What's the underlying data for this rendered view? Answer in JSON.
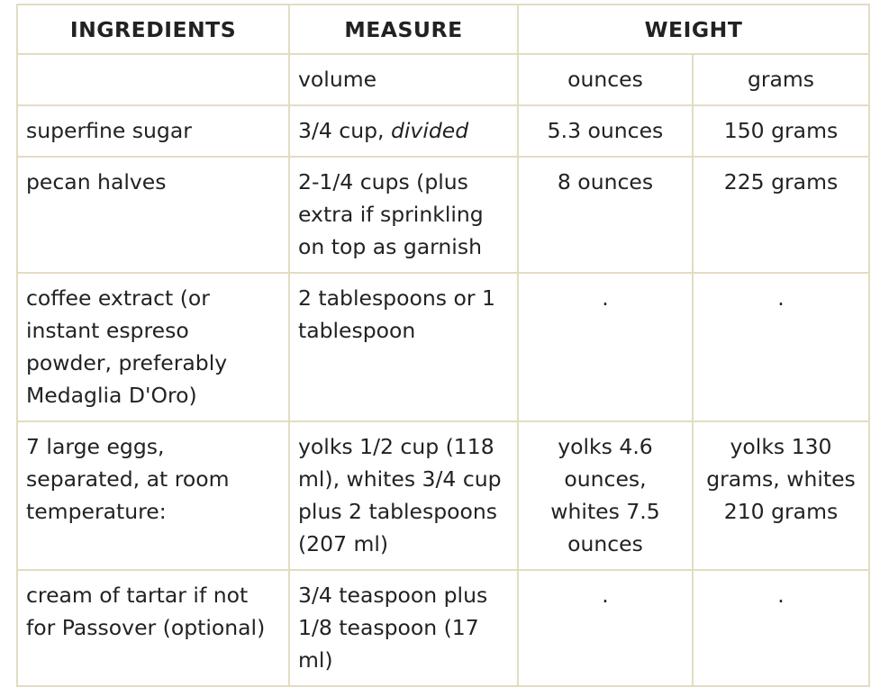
{
  "headers": {
    "ingredients": "INGREDIENTS",
    "measure": "MEASURE",
    "weight": "WEIGHT"
  },
  "subheaders": {
    "ingredients": "",
    "volume": "volume",
    "ounces": "ounces",
    "grams": "grams"
  },
  "rows": [
    {
      "ingredient": "superfine sugar",
      "measure_main": "3/4 cup, ",
      "measure_em": "divided",
      "ounces": "5.3 ounces",
      "grams": "150 grams"
    },
    {
      "ingredient": "pecan halves",
      "measure_main": "2-1/4 cups (plus extra if sprinkling on top as garnish",
      "measure_em": "",
      "ounces": "8 ounces",
      "grams": "225 grams"
    },
    {
      "ingredient": "coffee extract (or instant espreso powder, preferably Medaglia D'Oro)",
      "measure_main": "2 tablespoons or 1 tablespoon",
      "measure_em": "",
      "ounces": ".",
      "grams": "."
    },
    {
      "ingredient": "7 large eggs, separated, at room temperature:",
      "measure_main": "yolks 1/2 cup (118 ml), whites 3/4 cup plus 2 tablespoons (207 ml)",
      "measure_em": "",
      "ounces": "yolks 4.6 ounces, whites 7.5 ounces",
      "grams": "yolks 130 grams, whites 210 grams"
    },
    {
      "ingredient": "cream of tartar if not for Passover (optional)",
      "measure_main": "3/4 teaspoon plus 1/8 teaspoon (17 ml)",
      "measure_em": "",
      "ounces": ".",
      "grams": "."
    }
  ]
}
